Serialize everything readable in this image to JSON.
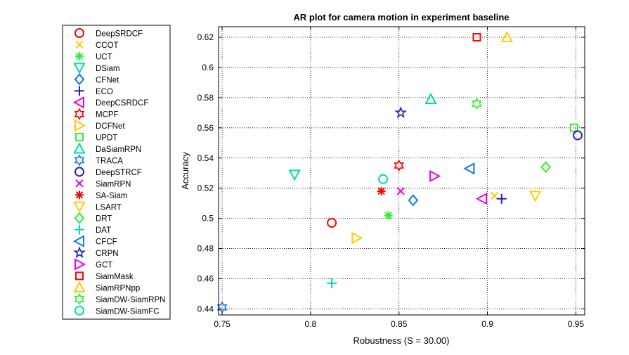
{
  "chart_data": {
    "type": "scatter",
    "title": "AR plot for camera motion in experiment baseline",
    "xlabel": "Robustness (S = 30.00)",
    "ylabel": "Accuracy",
    "xlim": [
      0.748,
      0.955
    ],
    "ylim": [
      0.436,
      0.627
    ],
    "xticks": [
      0.75,
      0.8,
      0.85,
      0.9,
      0.95
    ],
    "xtick_labels": [
      "0.75",
      "0.8",
      "0.85",
      "0.9",
      "0.95"
    ],
    "yticks": [
      0.44,
      0.46,
      0.48,
      0.5,
      0.52,
      0.54,
      0.56,
      0.58,
      0.6,
      0.62
    ],
    "ytick_labels": [
      "0.44",
      "0.46",
      "0.48",
      "0.5",
      "0.52",
      "0.54",
      "0.56",
      "0.58",
      "0.6",
      "0.62"
    ],
    "grid": true,
    "legend_position": "left",
    "series": [
      {
        "name": "DeepSRDCF",
        "marker": "circle",
        "color": "#ff0000",
        "x": 0.812,
        "y": 0.497
      },
      {
        "name": "CCOT",
        "marker": "x",
        "color": "#ffcc00",
        "x": 0.904,
        "y": 0.515
      },
      {
        "name": "UCT",
        "marker": "asterisk",
        "color": "#33ee33",
        "x": 0.844,
        "y": 0.502
      },
      {
        "name": "DSiam",
        "marker": "triangle-down",
        "color": "#00ddaa",
        "x": 0.791,
        "y": 0.529
      },
      {
        "name": "CFNet",
        "marker": "diamond",
        "color": "#1177ee",
        "x": 0.858,
        "y": 0.512
      },
      {
        "name": "ECO",
        "marker": "plus",
        "color": "#2222bb",
        "x": 0.908,
        "y": 0.513
      },
      {
        "name": "DeepCSRDCF",
        "marker": "triangle-left",
        "color": "#ee00ee",
        "x": 0.897,
        "y": 0.513
      },
      {
        "name": "MCPF",
        "marker": "hexagram",
        "color": "#ff0000",
        "x": 0.85,
        "y": 0.535
      },
      {
        "name": "DCFNet",
        "marker": "triangle-right",
        "color": "#ffcc00",
        "x": 0.826,
        "y": 0.487
      },
      {
        "name": "UPDT",
        "marker": "square",
        "color": "#33ee33",
        "x": 0.949,
        "y": 0.56
      },
      {
        "name": "DaSiamRPN",
        "marker": "triangle-up",
        "color": "#00ddaa",
        "x": 0.868,
        "y": 0.579
      },
      {
        "name": "TRACA",
        "marker": "hexagram",
        "color": "#1177ee",
        "x": 0.75,
        "y": 0.441
      },
      {
        "name": "DeepSTRCF",
        "marker": "circle",
        "color": "#2222bb",
        "x": 0.951,
        "y": 0.555
      },
      {
        "name": "SiamRPN",
        "marker": "x",
        "color": "#ee00ee",
        "x": 0.851,
        "y": 0.518
      },
      {
        "name": "SA-Siam",
        "marker": "asterisk",
        "color": "#ff0000",
        "x": 0.84,
        "y": 0.518
      },
      {
        "name": "LSART",
        "marker": "triangle-down",
        "color": "#ffcc00",
        "x": 0.927,
        "y": 0.515
      },
      {
        "name": "DRT",
        "marker": "diamond",
        "color": "#33ee33",
        "x": 0.933,
        "y": 0.534
      },
      {
        "name": "DAT",
        "marker": "plus",
        "color": "#00ddaa",
        "x": 0.812,
        "y": 0.457
      },
      {
        "name": "CFCF",
        "marker": "triangle-left",
        "color": "#1177ee",
        "x": 0.89,
        "y": 0.533
      },
      {
        "name": "CRPN",
        "marker": "pentagram",
        "color": "#2222bb",
        "x": 0.851,
        "y": 0.57
      },
      {
        "name": "GCT",
        "marker": "triangle-right",
        "color": "#ee00ee",
        "x": 0.87,
        "y": 0.528
      },
      {
        "name": "SiamMask",
        "marker": "square",
        "color": "#ff0000",
        "x": 0.894,
        "y": 0.62
      },
      {
        "name": "SiamRPNpp",
        "marker": "triangle-up",
        "color": "#ffcc00",
        "x": 0.911,
        "y": 0.62
      },
      {
        "name": "SiamDW-SiamRPN",
        "marker": "hexagram",
        "color": "#33ee33",
        "x": 0.894,
        "y": 0.576
      },
      {
        "name": "SiamDW-SiamFC",
        "marker": "circle",
        "color": "#00ddaa",
        "x": 0.841,
        "y": 0.526
      }
    ]
  }
}
